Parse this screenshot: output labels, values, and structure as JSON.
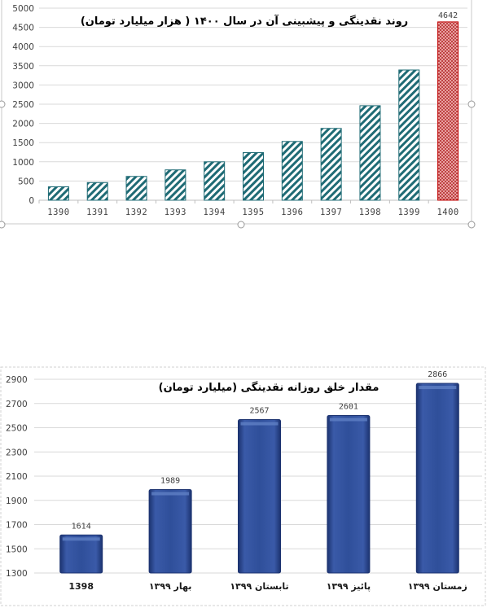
{
  "chart_data": [
    {
      "type": "bar",
      "title": "روند نقدینگی و پیشبینی آن در سال ۱۴۰۰ ( هزار میلیارد تومان)",
      "categories": [
        "1390",
        "1391",
        "1392",
        "1393",
        "1394",
        "1395",
        "1396",
        "1397",
        "1398",
        "1399",
        "1400"
      ],
      "values": [
        350,
        460,
        620,
        790,
        1000,
        1240,
        1530,
        1870,
        2460,
        3390,
        4642
      ],
      "data_labels": [
        "",
        "",
        "",
        "",
        "",
        "",
        "",
        "",
        "",
        "",
        "4642"
      ],
      "forecast_category": "1400",
      "ylim": [
        0,
        5000
      ],
      "yticks": [
        0,
        500,
        1000,
        1500,
        2000,
        2500,
        3000,
        3500,
        4000,
        4500,
        5000
      ],
      "grid": true,
      "colors": {
        "actual": "#1f6b75",
        "forecast": "#c00000",
        "grid": "#d9d9d9"
      }
    },
    {
      "type": "bar",
      "title": "مقدار خلق روزانه نقدینگی (میلیارد تومان)",
      "categories": [
        "1398",
        "بهار ۱۳۹۹",
        "تابستان ۱۳۹۹",
        "پائیز ۱۳۹۹",
        "زمستان ۱۳۹۹"
      ],
      "values": [
        1614,
        1989,
        2567,
        2601,
        2866
      ],
      "data_labels": [
        "1614",
        "1989",
        "2567",
        "2601",
        "2866"
      ],
      "ylim": [
        1300,
        2900
      ],
      "yticks": [
        1300,
        1500,
        1700,
        1900,
        2100,
        2300,
        2500,
        2700,
        2900
      ],
      "grid": true,
      "colors": {
        "bar": "#2f4f9a",
        "bar_dark": "#1c3370",
        "bar_light": "#5f7fc4",
        "grid": "#d9d9d9"
      }
    }
  ]
}
